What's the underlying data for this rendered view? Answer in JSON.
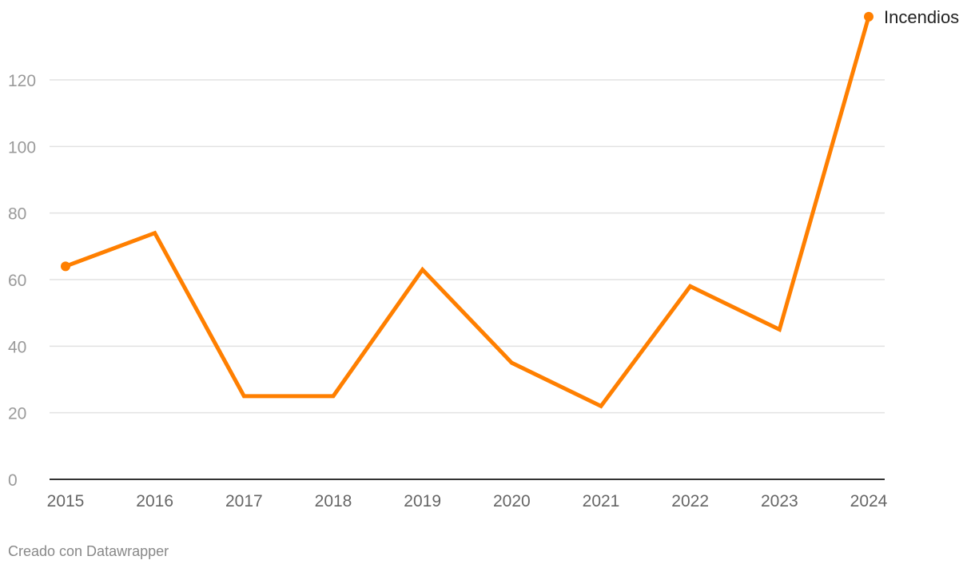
{
  "chart_data": {
    "type": "line",
    "categories": [
      "2015",
      "2016",
      "2017",
      "2018",
      "2019",
      "2020",
      "2021",
      "2022",
      "2023",
      "2024"
    ],
    "series": [
      {
        "name": "Incendios",
        "values": [
          64,
          74,
          25,
          25,
          63,
          35,
          22,
          58,
          45,
          139
        ],
        "color": "#ff7f00"
      }
    ],
    "yticks": [
      0,
      20,
      40,
      60,
      80,
      100,
      120
    ],
    "ylim": [
      0,
      139
    ],
    "grid": true,
    "legend": "direct label at line end"
  },
  "footer": {
    "credit": "Creado con Datawrapper"
  }
}
